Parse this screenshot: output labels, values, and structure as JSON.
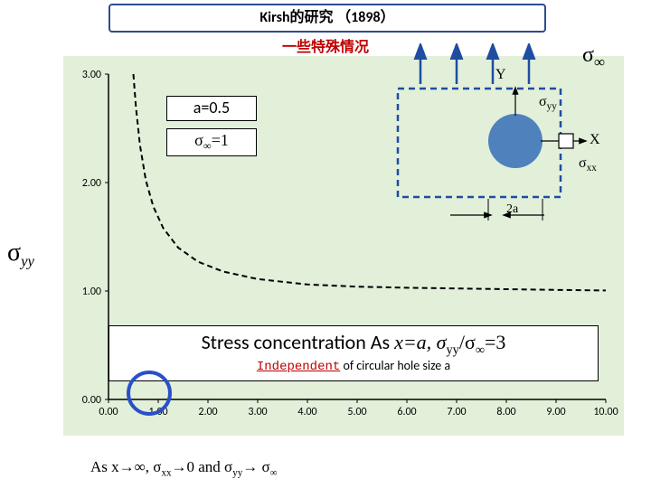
{
  "title": "Kirsh的研究 （1898）",
  "subtitle": "一些特殊情况",
  "ylabel_sigma": "σ",
  "ylabel_sub": "yy",
  "params": {
    "a_label": "a=0.5",
    "sigma_inf_label": "σ∞=1"
  },
  "axis": {
    "x_ticks": [
      "0.00",
      "1.00",
      "2.00",
      "3.00",
      "4.00",
      "5.00",
      "6.00",
      "7.00",
      "8.00",
      "9.00",
      "10.00"
    ],
    "y_ticks": [
      "0.00",
      "1.00",
      "2.00",
      "3.00"
    ]
  },
  "chart": {
    "type": "line",
    "x_range": [
      0,
      10
    ],
    "y_range": [
      0,
      3
    ],
    "curve_pts": [
      [
        0.5,
        3.0
      ],
      [
        0.55,
        2.7
      ],
      [
        0.63,
        2.35
      ],
      [
        0.75,
        2.02
      ],
      [
        0.9,
        1.78
      ],
      [
        1.1,
        1.58
      ],
      [
        1.4,
        1.4
      ],
      [
        1.8,
        1.27
      ],
      [
        2.3,
        1.18
      ],
      [
        3.0,
        1.11
      ],
      [
        4.0,
        1.06
      ],
      [
        5.0,
        1.04
      ],
      [
        6.0,
        1.03
      ],
      [
        7.5,
        1.02
      ],
      [
        9.0,
        1.01
      ],
      [
        10.0,
        1.005
      ]
    ],
    "line_color": "#000000",
    "line_width": 2,
    "grid_color": "#808080",
    "background_plot": "#e2efd9"
  },
  "hole": {
    "circle_fill": "#4f81bd",
    "dashed_color": "#1f4da1",
    "arrow_color": "#1f4da1",
    "sigma_inf": "σ",
    "sigma_inf_sub": "∞",
    "sigma_yy": "σ",
    "sigma_xx": "σ",
    "y_axis_label": "Y",
    "x_axis_label": "X",
    "two_a_label": "2a"
  },
  "result": {
    "main_prefix": "Stress concentration As ",
    "main_eq": "x=a, σ",
    "main_eq_sub": "yy",
    "main_eq_mid": "/σ",
    "main_eq_sub2": "∞",
    "main_eq_end": "=3",
    "sub_red": "Independent",
    "sub_plain": " of circular hole size a"
  },
  "limit": {
    "prefix": "As x→∞, σ",
    "sub1": "xx",
    "mid": "→0 and σ",
    "sub2": "yy",
    "end": "→ σ",
    "sub3": "∞"
  },
  "colors": {
    "title_border": "#2e4b8f",
    "subtitle": "#c00000",
    "accent_circle": "#2850c8"
  }
}
